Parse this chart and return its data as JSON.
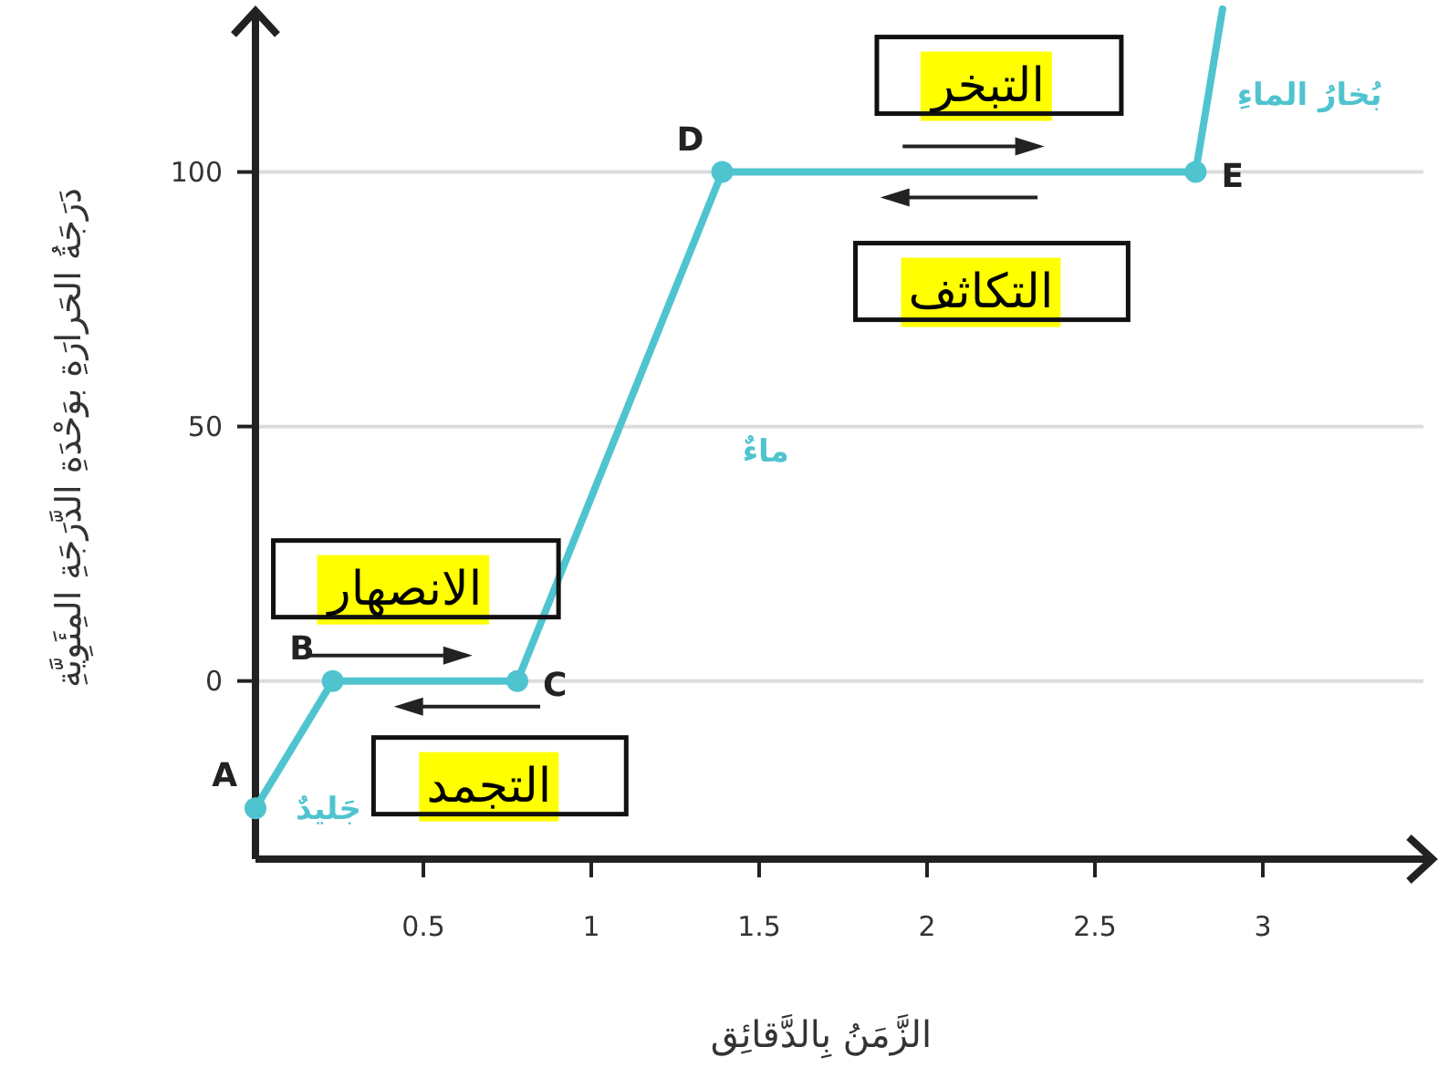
{
  "chart_data": {
    "type": "line",
    "xlabel": "الزَّمَنُ بِالدَّقائِق",
    "ylabel": "دَرَجَةُ الحَرارَةِ بوَحْدَةِ الدَّرَجَةِ المِئَوِيَّةِ",
    "xlim": [
      0,
      3.5
    ],
    "ylim": [
      -35,
      132
    ],
    "xticks": [
      0.5,
      1,
      1.5,
      2,
      2.5,
      3
    ],
    "yticks": [
      0,
      50,
      100
    ],
    "grid": "y",
    "marker": "circle",
    "line_style": "solid",
    "series": [
      {
        "color": "#4fc4cf",
        "x": [
          0,
          0.23,
          0.78,
          1.39,
          2.8,
          2.88
        ],
        "values": [
          -25,
          0,
          0,
          100,
          100,
          132
        ]
      }
    ],
    "annotations": [
      "A",
      "B",
      "C",
      "D",
      "E",
      "جَليدٌ",
      "ماءٌ",
      "بُخارُ الماءِ",
      "الانصهار",
      "التجمد",
      "التبخر",
      "التكاثف"
    ]
  }
}
